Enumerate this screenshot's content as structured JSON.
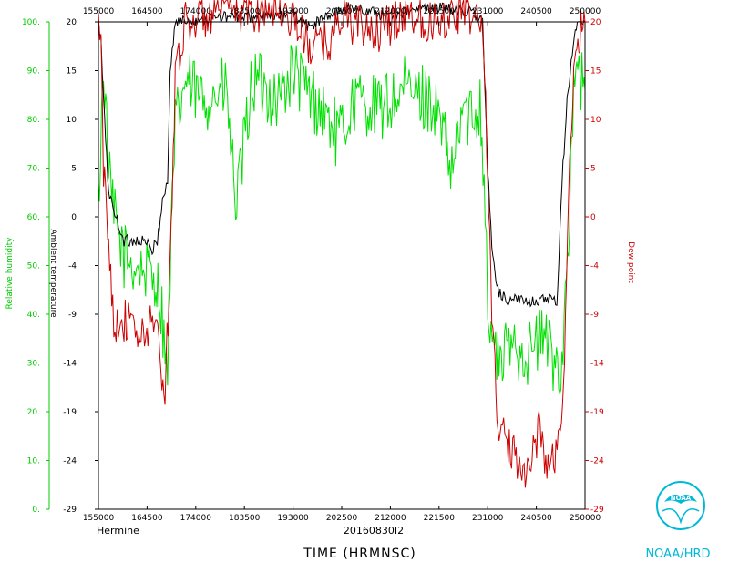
{
  "chart_data": {
    "type": "line",
    "x_ticks": [
      "155000",
      "164500",
      "174000",
      "183500",
      "193000",
      "202500",
      "212000",
      "221500",
      "231000",
      "240500",
      "250000"
    ],
    "x_range": [
      155000,
      250000
    ],
    "left_rh_axis": {
      "label": "Relative humidity",
      "ticks": [
        "0.",
        "10.",
        "20.",
        "30.",
        "40.",
        "50.",
        "60.",
        "70.",
        "80.",
        "90.",
        "100."
      ],
      "ylim": [
        0,
        100
      ],
      "color": "#00cc00"
    },
    "left_temp_axis": {
      "label": "Ambient temperature",
      "ticks": [
        "-29",
        "-24",
        "-19",
        "-14",
        "-9",
        "-4",
        "0",
        "5",
        "10",
        "15",
        "20"
      ],
      "ylim": [
        -29,
        20
      ],
      "color": "#000000"
    },
    "right_dew_axis": {
      "label": "Dew point",
      "ticks": [
        "-29",
        "-24",
        "-19",
        "-14",
        "-9",
        "-4",
        "0",
        "5",
        "10",
        "15",
        "20"
      ],
      "ylim": [
        -29,
        20
      ],
      "color": "#cc0000"
    },
    "series": [
      {
        "name": "Relative humidity",
        "axis": "left_rh_axis",
        "color": "#00e000",
        "x": [
          155000,
          156000,
          157000,
          158000,
          160000,
          162000,
          164000,
          166000,
          167000,
          168000,
          168500,
          169000,
          170000,
          172000,
          175000,
          180000,
          181000,
          182000,
          185000,
          188000,
          190000,
          193000,
          197000,
          200000,
          202000,
          205000,
          210000,
          215000,
          220000,
          222000,
          224000,
          226000,
          228000,
          229500,
          230500,
          231000,
          233000,
          236000,
          239000,
          242000,
          244000,
          245500,
          247000,
          248000,
          249000,
          250000
        ],
        "values": [
          62,
          92,
          68,
          60,
          52,
          50,
          49,
          48,
          44,
          34,
          24,
          50,
          78,
          88,
          84,
          86,
          72,
          62,
          88,
          86,
          84,
          90,
          84,
          80,
          76,
          84,
          82,
          86,
          84,
          78,
          68,
          82,
          80,
          84,
          64,
          40,
          30,
          34,
          32,
          36,
          30,
          30,
          62,
          90,
          88,
          86
        ]
      },
      {
        "name": "Ambient temperature",
        "axis": "left_temp_axis",
        "color": "#000000",
        "x": [
          155000,
          155500,
          156000,
          157000,
          158000,
          160000,
          164000,
          165500,
          166500,
          167500,
          168000,
          168500,
          169000,
          170000,
          180000,
          190000,
          193000,
          196000,
          200000,
          204000,
          210000,
          215000,
          220000,
          228000,
          230000,
          231000,
          232000,
          233000,
          235000,
          240000,
          242000,
          244000,
          244500,
          245500,
          246500,
          247500,
          248500,
          250000
        ],
        "values": [
          20,
          18,
          12,
          3,
          1,
          -2,
          -2,
          -3,
          -2,
          2,
          3,
          4,
          15,
          20,
          20.5,
          20.5,
          20.8,
          19.5,
          20.6,
          21.5,
          20.8,
          21,
          21.5,
          21,
          20,
          5,
          -4,
          -7,
          -8,
          -8,
          -8,
          -8,
          -9,
          4,
          12,
          17,
          20,
          20
        ]
      },
      {
        "name": "Dew point",
        "axis": "right_dew_axis",
        "color": "#cc0000",
        "x": [
          155000,
          155500,
          156000,
          157000,
          158000,
          160000,
          162000,
          164000,
          166000,
          167000,
          168000,
          169000,
          170000,
          172000,
          180000,
          185000,
          190000,
          193000,
          196000,
          200000,
          203000,
          205000,
          210000,
          215000,
          220000,
          225000,
          228000,
          230000,
          231000,
          232000,
          233000,
          235000,
          237000,
          239000,
          241000,
          243000,
          245000,
          246000,
          247000,
          248000,
          249000,
          250000
        ],
        "values": [
          20,
          17,
          5,
          -2,
          -10,
          -10,
          -11,
          -12,
          -9,
          -14,
          -18,
          -4,
          15,
          20,
          21,
          21,
          21.5,
          20.5,
          17.5,
          18,
          21,
          19.5,
          19,
          21,
          20,
          21,
          20.5,
          20,
          5,
          -12,
          -20,
          -23,
          -24,
          -25,
          -21,
          -25,
          -22,
          -14,
          5,
          16,
          19,
          20
        ]
      }
    ],
    "annotations": {
      "storm": "Hermine",
      "flight_id": "20160830I2",
      "xlabel": "TIME (HRMNSC)"
    }
  },
  "logo": {
    "org": "NOAA/HRD",
    "emblem_text": "NOAA"
  }
}
